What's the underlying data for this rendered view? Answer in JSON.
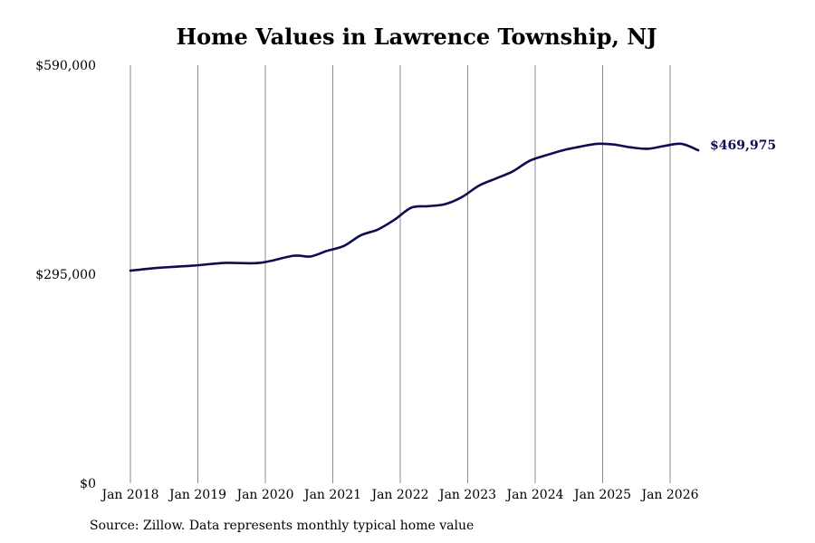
{
  "chart_data": {
    "type": "line",
    "title": "Home Values in Lawrence Township, NJ",
    "xlabel": "",
    "ylabel": "",
    "ylim": [
      0,
      590000
    ],
    "y_ticks": [
      "$0",
      "$295,000",
      "$590,000"
    ],
    "y_tick_values": [
      0,
      295000,
      590000
    ],
    "x_ticks": [
      "Jan 2018",
      "Jan 2019",
      "Jan 2020",
      "Jan 2021",
      "Jan 2022",
      "Jan 2023",
      "Jan 2024",
      "Jan 2025",
      "Jan 2026"
    ],
    "x_tick_dates": [
      "2018-01",
      "2019-01",
      "2020-01",
      "2021-01",
      "2022-01",
      "2023-01",
      "2024-01",
      "2025-01",
      "2026-01"
    ],
    "xlim": [
      "2018-01",
      "2026-06"
    ],
    "grid": "vertical",
    "line_color": "#0d0d52",
    "series": [
      {
        "x": [
          "2018-01",
          "2018-06",
          "2018-12",
          "2019-06",
          "2019-12",
          "2020-06",
          "2020-09",
          "2020-12",
          "2021-03",
          "2021-06",
          "2021-09",
          "2021-12",
          "2022-03",
          "2022-06",
          "2022-09",
          "2022-12",
          "2023-03",
          "2023-06",
          "2023-09",
          "2023-12",
          "2024-03",
          "2024-06",
          "2024-09",
          "2024-12",
          "2025-03",
          "2025-06",
          "2025-09",
          "2025-12",
          "2026-03",
          "2026-06"
        ],
        "values": [
          300000,
          304000,
          307000,
          311000,
          311000,
          321000,
          320000,
          328000,
          335000,
          350000,
          358000,
          372000,
          389000,
          391000,
          394000,
          404000,
          420000,
          430000,
          440000,
          455000,
          463000,
          470000,
          475000,
          479000,
          478000,
          474000,
          472000,
          476000,
          479000,
          469975
        ]
      }
    ],
    "end_label": "$469,975"
  },
  "footer": {
    "source": "Source: Zillow. Data represents monthly typical home value"
  }
}
